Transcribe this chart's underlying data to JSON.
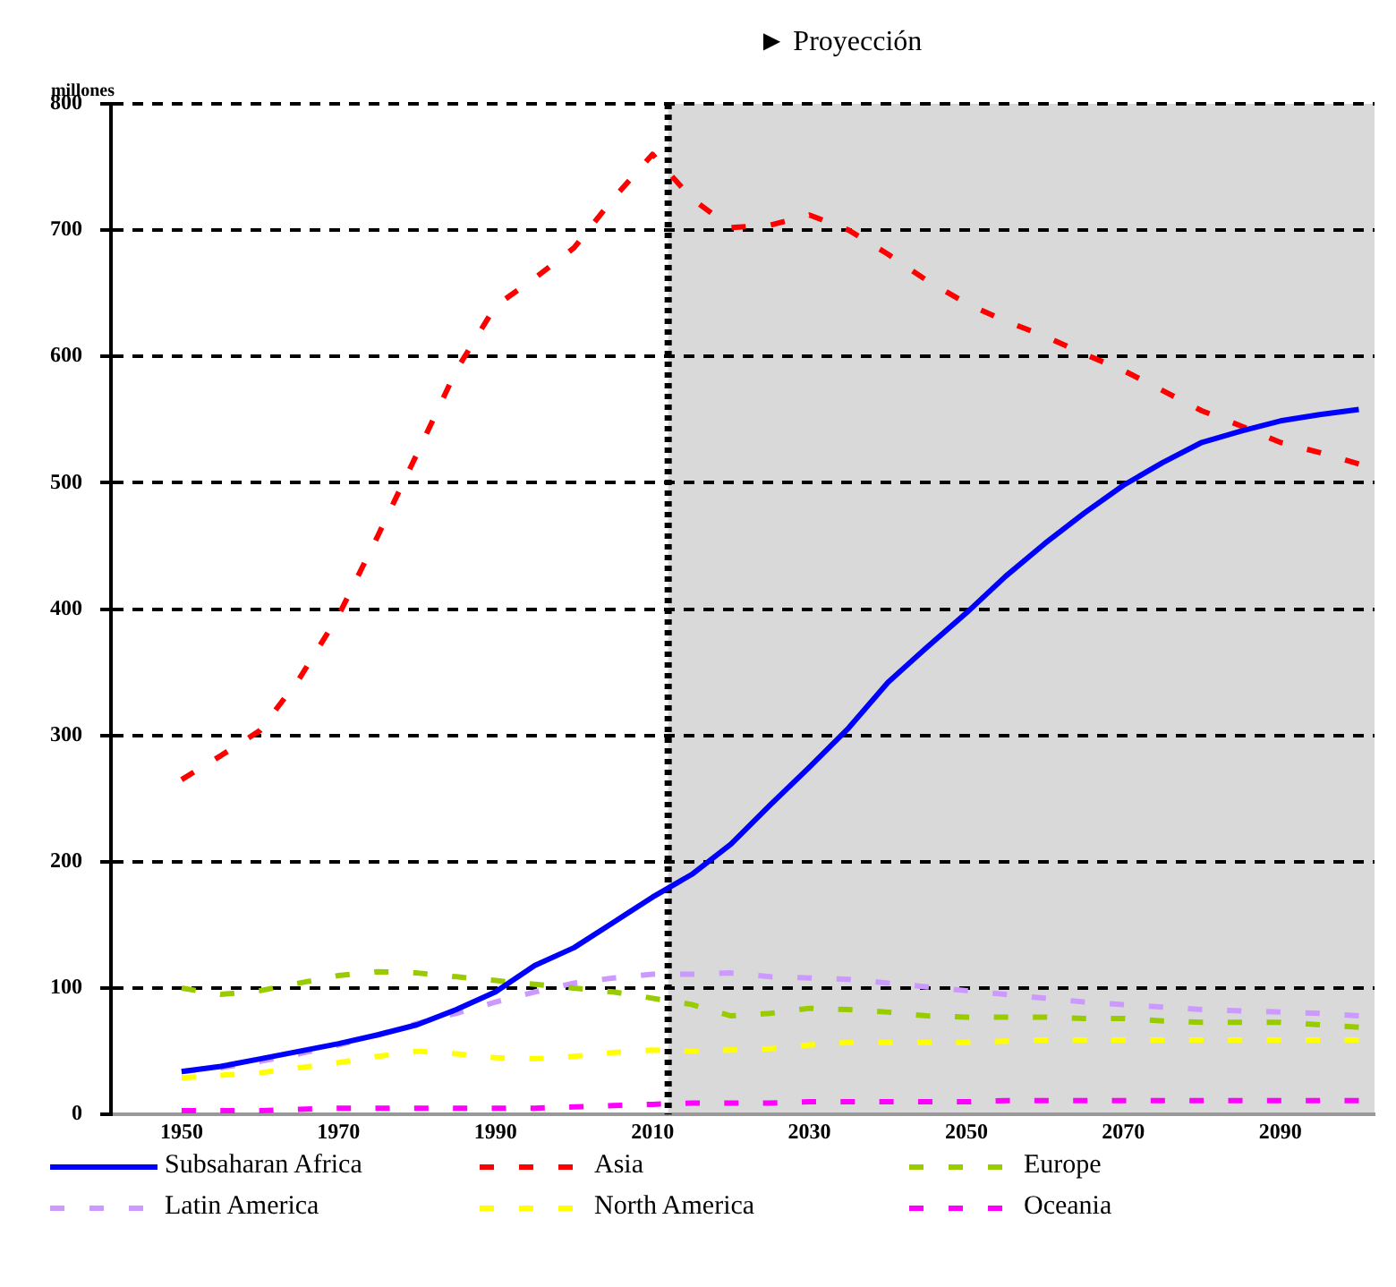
{
  "chart_data": {
    "type": "line",
    "ylabel": "millones",
    "x": [
      1950,
      1955,
      1960,
      1965,
      1970,
      1975,
      1980,
      1985,
      1990,
      1995,
      2000,
      2005,
      2010,
      2015,
      2020,
      2025,
      2030,
      2035,
      2040,
      2045,
      2050,
      2055,
      2060,
      2065,
      2070,
      2075,
      2080,
      2085,
      2090,
      2095,
      2100
    ],
    "series": [
      {
        "name": "Subsaharan Africa",
        "color": "#0000ff",
        "line_style": "solid",
        "values": [
          34,
          38,
          44,
          50,
          56,
          63,
          71,
          83,
          97,
          118,
          132,
          152,
          172,
          190,
          214,
          245,
          275,
          306,
          342,
          370,
          397,
          426,
          452,
          476,
          498,
          516,
          532,
          541,
          549,
          554,
          558
        ]
      },
      {
        "name": "Asia",
        "color": "#ff0000",
        "line_style": "dashed",
        "values": [
          265,
          284,
          304,
          345,
          395,
          458,
          523,
          589,
          640,
          662,
          686,
          725,
          760,
          725,
          702,
          704,
          712,
          700,
          681,
          660,
          642,
          628,
          616,
          602,
          589,
          573,
          557,
          545,
          532,
          524,
          515
        ]
      },
      {
        "name": "Europe",
        "color": "#99cc00",
        "line_style": "dashed",
        "values": [
          100,
          95,
          98,
          104,
          110,
          113,
          112,
          109,
          106,
          103,
          100,
          97,
          92,
          87,
          78,
          80,
          84,
          83,
          81,
          78,
          77,
          77,
          77,
          76,
          76,
          74,
          73,
          73,
          73,
          71,
          69
        ]
      },
      {
        "name": "Latin America",
        "color": "#cc99ff",
        "line_style": "dashed",
        "values": [
          34,
          37,
          42,
          48,
          55,
          63,
          72,
          80,
          89,
          97,
          104,
          108,
          111,
          111,
          112,
          109,
          108,
          107,
          104,
          101,
          98,
          95,
          92,
          89,
          87,
          85,
          83,
          82,
          81,
          80,
          78
        ]
      },
      {
        "name": "North America",
        "color": "#ffff00",
        "line_style": "dashed",
        "values": [
          29,
          31,
          33,
          37,
          41,
          46,
          50,
          48,
          45,
          44,
          46,
          49,
          51,
          50,
          51,
          52,
          55,
          57,
          57,
          57,
          57,
          58,
          59,
          59,
          59,
          59,
          59,
          59,
          59,
          59,
          59
        ]
      },
      {
        "name": "Oceania",
        "color": "#ff00ff",
        "line_style": "dashed",
        "values": [
          3,
          3,
          3,
          4,
          5,
          5,
          5,
          5,
          5,
          5,
          6,
          7,
          8,
          9,
          9,
          9,
          10,
          10,
          10,
          10,
          10,
          11,
          11,
          11,
          11,
          11,
          11,
          11,
          11,
          11,
          11
        ]
      }
    ],
    "xlim": [
      1941,
      2102
    ],
    "xticks": [
      1950,
      1970,
      1990,
      2010,
      2030,
      2050,
      2070,
      2090
    ],
    "ylim": [
      0,
      800
    ],
    "yticks": [
      0,
      100,
      200,
      300,
      400,
      500,
      600,
      700,
      800
    ],
    "grid": "y",
    "legend": "bottom",
    "marker": "none",
    "bands": [
      {
        "axis": "x",
        "from": 2012,
        "to": 2102,
        "label": "► Proyección",
        "color": "#d9d9d9"
      }
    ],
    "ref_lines": [
      {
        "axis": "x",
        "value": 2012,
        "color": "#000000",
        "line_style": "dotted"
      }
    ]
  }
}
